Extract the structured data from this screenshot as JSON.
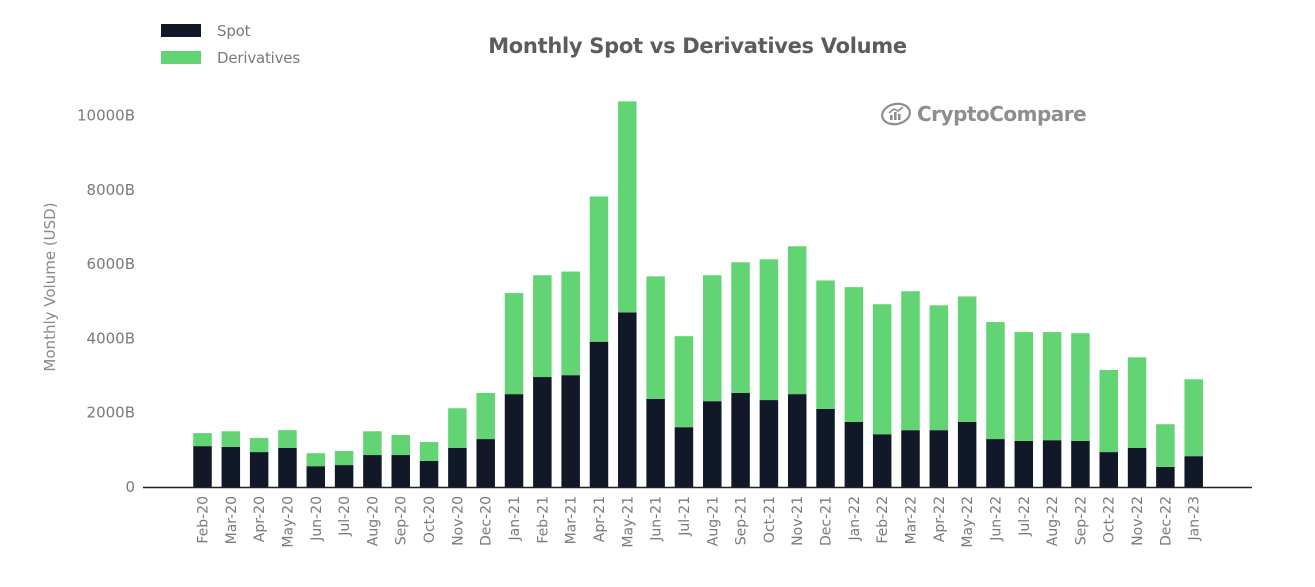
{
  "chart_data": {
    "type": "bar",
    "stacked": true,
    "title": "Monthly Spot vs Derivatives Volume",
    "xlabel": "",
    "ylabel": "Monthly Volume (USD)",
    "ylim": [
      0,
      10500
    ],
    "yticks": [
      0,
      2000,
      4000,
      6000,
      8000,
      10000
    ],
    "ytick_labels": [
      "0",
      "2000B",
      "4000B",
      "6000B",
      "8000B",
      "10000B"
    ],
    "grid": false,
    "legend_position": "top-left",
    "watermark": "CryptoCompare",
    "categories": [
      "Feb-20",
      "Mar-20",
      "Apr-20",
      "May-20",
      "Jun-20",
      "Jul-20",
      "Aug-20",
      "Sep-20",
      "Oct-20",
      "Nov-20",
      "Dec-20",
      "Jan-21",
      "Feb-21",
      "Mar-21",
      "Apr-21",
      "May-21",
      "Jun-21",
      "Jul-21",
      "Aug-21",
      "Sep-21",
      "Oct-21",
      "Nov-21",
      "Dec-21",
      "Jan-22",
      "Feb-22",
      "Mar-22",
      "Apr-22",
      "May-22",
      "Jun-22",
      "Jul-22",
      "Aug-22",
      "Sep-22",
      "Oct-22",
      "Nov-22",
      "Dec-22",
      "Jan-23"
    ],
    "series": [
      {
        "name": "Spot",
        "color": "#111827",
        "values": [
          1100,
          1080,
          940,
          1050,
          560,
          590,
          860,
          860,
          700,
          1050,
          1290,
          2500,
          2960,
          3010,
          3910,
          4700,
          2370,
          1610,
          2310,
          2530,
          2340,
          2500,
          2100,
          1750,
          1420,
          1530,
          1530,
          1750,
          1290,
          1240,
          1260,
          1240,
          940,
          1050,
          540,
          830
        ]
      },
      {
        "name": "Derivatives",
        "color": "#62d474",
        "values": [
          350,
          420,
          380,
          480,
          350,
          380,
          640,
          540,
          510,
          1070,
          1240,
          2720,
          2740,
          2790,
          3910,
          5680,
          3300,
          2450,
          3390,
          3520,
          3790,
          3980,
          3460,
          3630,
          3500,
          3740,
          3360,
          3380,
          3150,
          2930,
          2910,
          2900,
          2210,
          2440,
          1150,
          2070
        ]
      }
    ]
  }
}
